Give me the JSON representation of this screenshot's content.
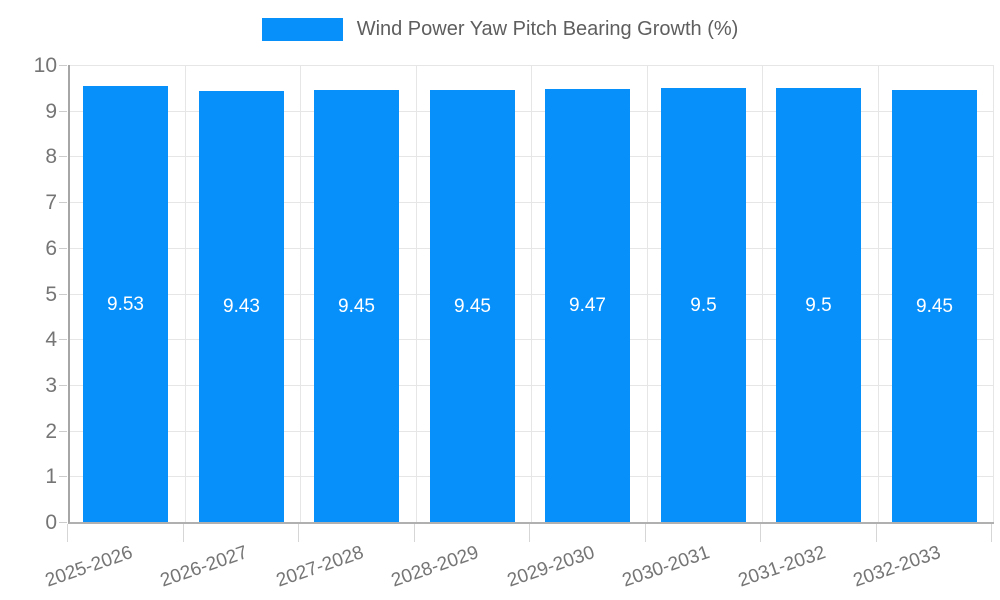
{
  "chart_data": {
    "type": "bar",
    "title": "Wind Power Yaw Pitch Bearing Growth (%)",
    "categories": [
      "2025-2026",
      "2026-2027",
      "2027-2028",
      "2028-2029",
      "2029-2030",
      "2030-2031",
      "2031-2032",
      "2032-2033"
    ],
    "values": [
      9.53,
      9.43,
      9.45,
      9.45,
      9.47,
      9.5,
      9.5,
      9.45
    ],
    "value_labels": [
      "9.53",
      "9.43",
      "9.45",
      "9.45",
      "9.47",
      "9.5",
      "9.5",
      "9.45"
    ],
    "xlabel": "",
    "ylabel": "",
    "ylim": [
      0,
      10
    ],
    "y_ticks": [
      "0",
      "1",
      "2",
      "3",
      "4",
      "5",
      "6",
      "7",
      "8",
      "9",
      "10"
    ],
    "grid": true,
    "legend_position": "top",
    "colors": {
      "bar": "#0890fa",
      "bar_value_label": "#ffffff",
      "axis_line": "#a6a6a6",
      "grid_line": "#e6e6e6",
      "tick_label": "#757575",
      "legend_text": "#5e5e5e"
    }
  }
}
